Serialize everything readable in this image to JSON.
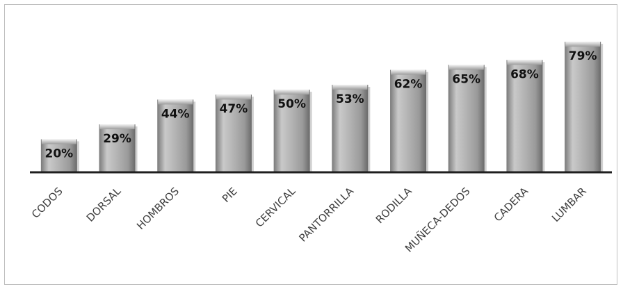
{
  "chart_data": {
    "type": "bar",
    "title": "",
    "xlabel": "",
    "ylabel": "",
    "categories": [
      "CODOS",
      "DORSAL",
      "HOMBROS",
      "PIE",
      "CERVICAL",
      "PANTORRILLA",
      "RODILLA",
      "MUÑECA-DEDOS",
      "CADERA",
      "LUMBAR"
    ],
    "values": [
      20,
      29,
      44,
      47,
      50,
      53,
      62,
      65,
      68,
      79
    ],
    "data_labels": [
      "20%",
      "29%",
      "44%",
      "47%",
      "50%",
      "53%",
      "62%",
      "65%",
      "68%",
      "79%"
    ],
    "ylim": [
      0,
      90
    ],
    "grid": false,
    "legend": "none",
    "colors": {
      "bar_light": "#e6e6e6",
      "bar_mid": "#a6a6a6",
      "bar_dark": "#6e6e6e",
      "axis": "#1f1f1f"
    }
  }
}
